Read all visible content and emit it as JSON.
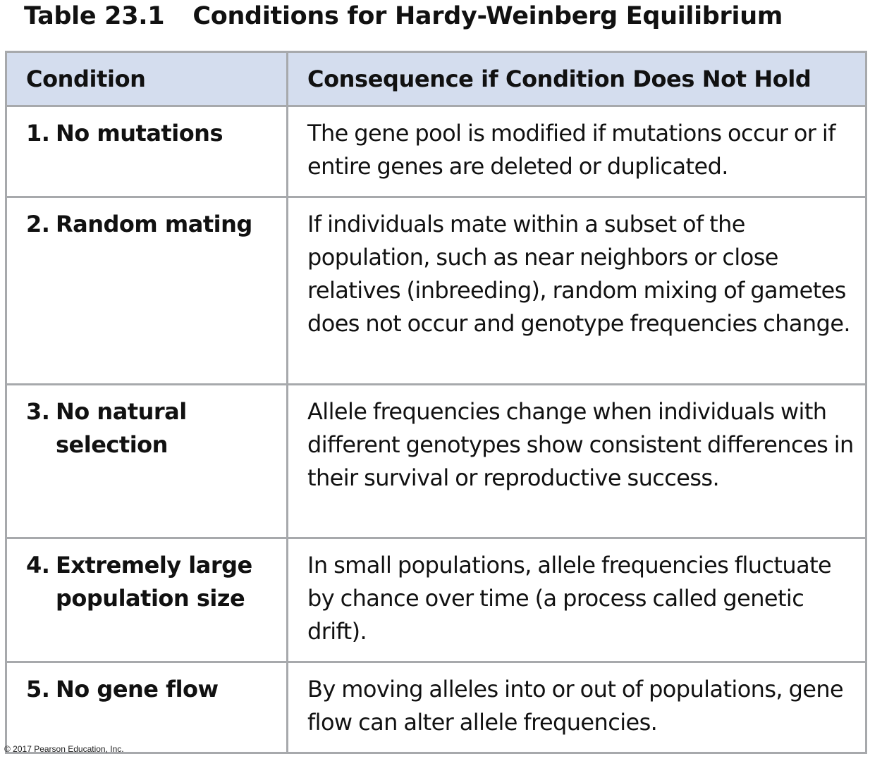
{
  "title": {
    "number": "Table 23.1",
    "text": "Conditions for Hardy-Weinberg Equilibrium"
  },
  "table": {
    "headers": [
      "Condition",
      "Consequence if Condition Does Not Hold"
    ],
    "rows": [
      {
        "number": "1.",
        "condition": "No mutations",
        "consequence": "The gene pool is modified if mutations occur or if entire genes are deleted or duplicated."
      },
      {
        "number": "2.",
        "condition": "Random mating",
        "consequence": "If individuals mate within a subset of the population, such as near neighbors or close relatives (inbreeding), random mixing of gametes does not occur and genotype frequencies change."
      },
      {
        "number": "3.",
        "condition": "No natural selection",
        "consequence": "Allele frequencies change when individuals with different genotypes show consistent differences in their survival or reproductive success."
      },
      {
        "number": "4.",
        "condition": "Extremely large population size",
        "consequence": "In small populations, allele frequencies fluctuate by chance over time (a process called genetic drift)."
      },
      {
        "number": "5.",
        "condition": "No gene flow",
        "consequence": "By moving alleles into or out of populations, gene flow can alter allele frequencies."
      }
    ]
  },
  "footer": {
    "copyright": "© 2017 Pearson Education, Inc."
  },
  "colors": {
    "header_background": "#d4ddee",
    "border": "#a7a9ac",
    "text": "#111111"
  }
}
